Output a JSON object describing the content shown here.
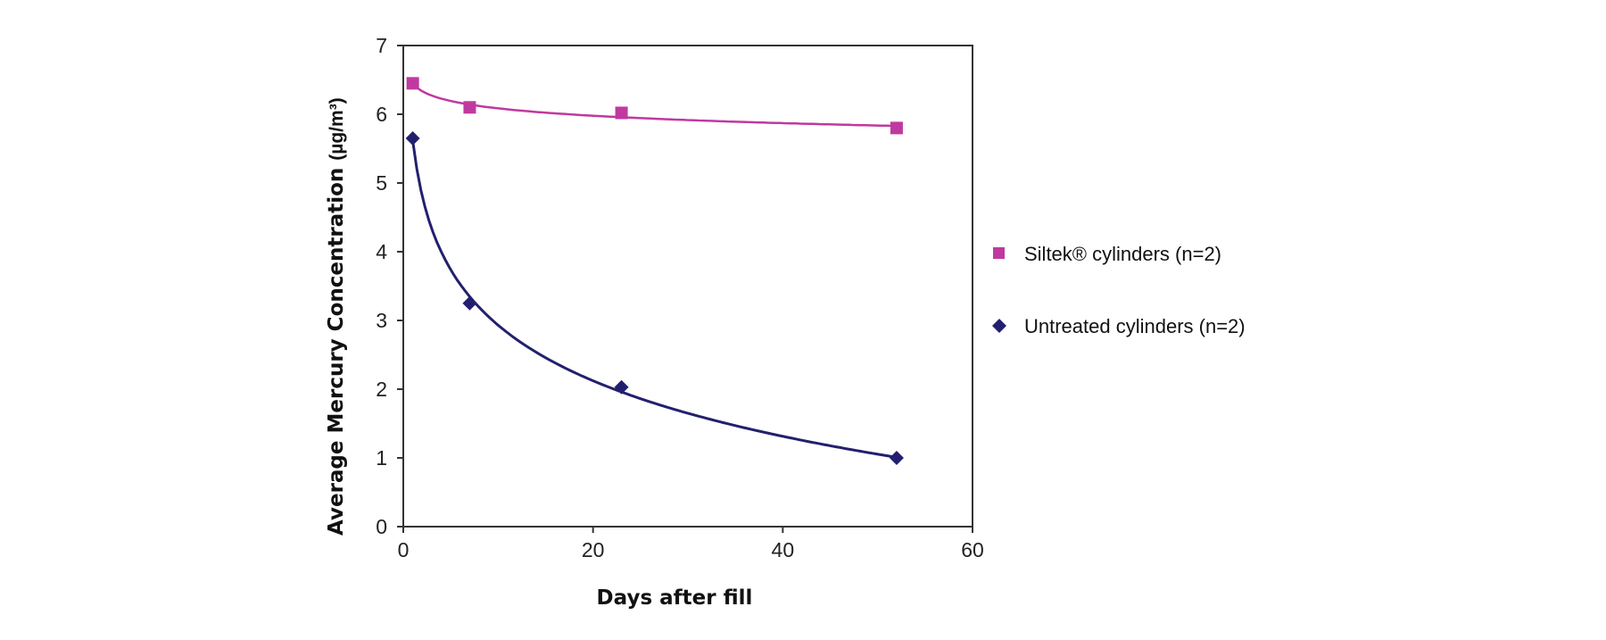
{
  "chart_data": {
    "type": "scatter",
    "xlabel": "Days after fill",
    "ylabel": "Average Mercury Concentration",
    "ylabel_unit": "(µg/m³)",
    "xlim": [
      0,
      60
    ],
    "ylim": [
      0,
      7
    ],
    "xticks": [
      "0",
      "20",
      "40",
      "60"
    ],
    "yticks": [
      "0",
      "1",
      "2",
      "3",
      "4",
      "5",
      "6",
      "7"
    ],
    "grid": false,
    "legend_position": "right",
    "trendline": "logarithmic",
    "series": [
      {
        "name": "Siltek® cylinders (n=2)",
        "marker": "square",
        "color": "#c0399f",
        "x": [
          1,
          7,
          23,
          52
        ],
        "y": [
          6.45,
          6.1,
          6.02,
          5.8
        ]
      },
      {
        "name": "Untreated cylinders (n=2)",
        "marker": "diamond",
        "color": "#22206e",
        "x": [
          1,
          7,
          23,
          52
        ],
        "y": [
          5.65,
          3.25,
          2.03,
          1.0
        ]
      }
    ]
  }
}
